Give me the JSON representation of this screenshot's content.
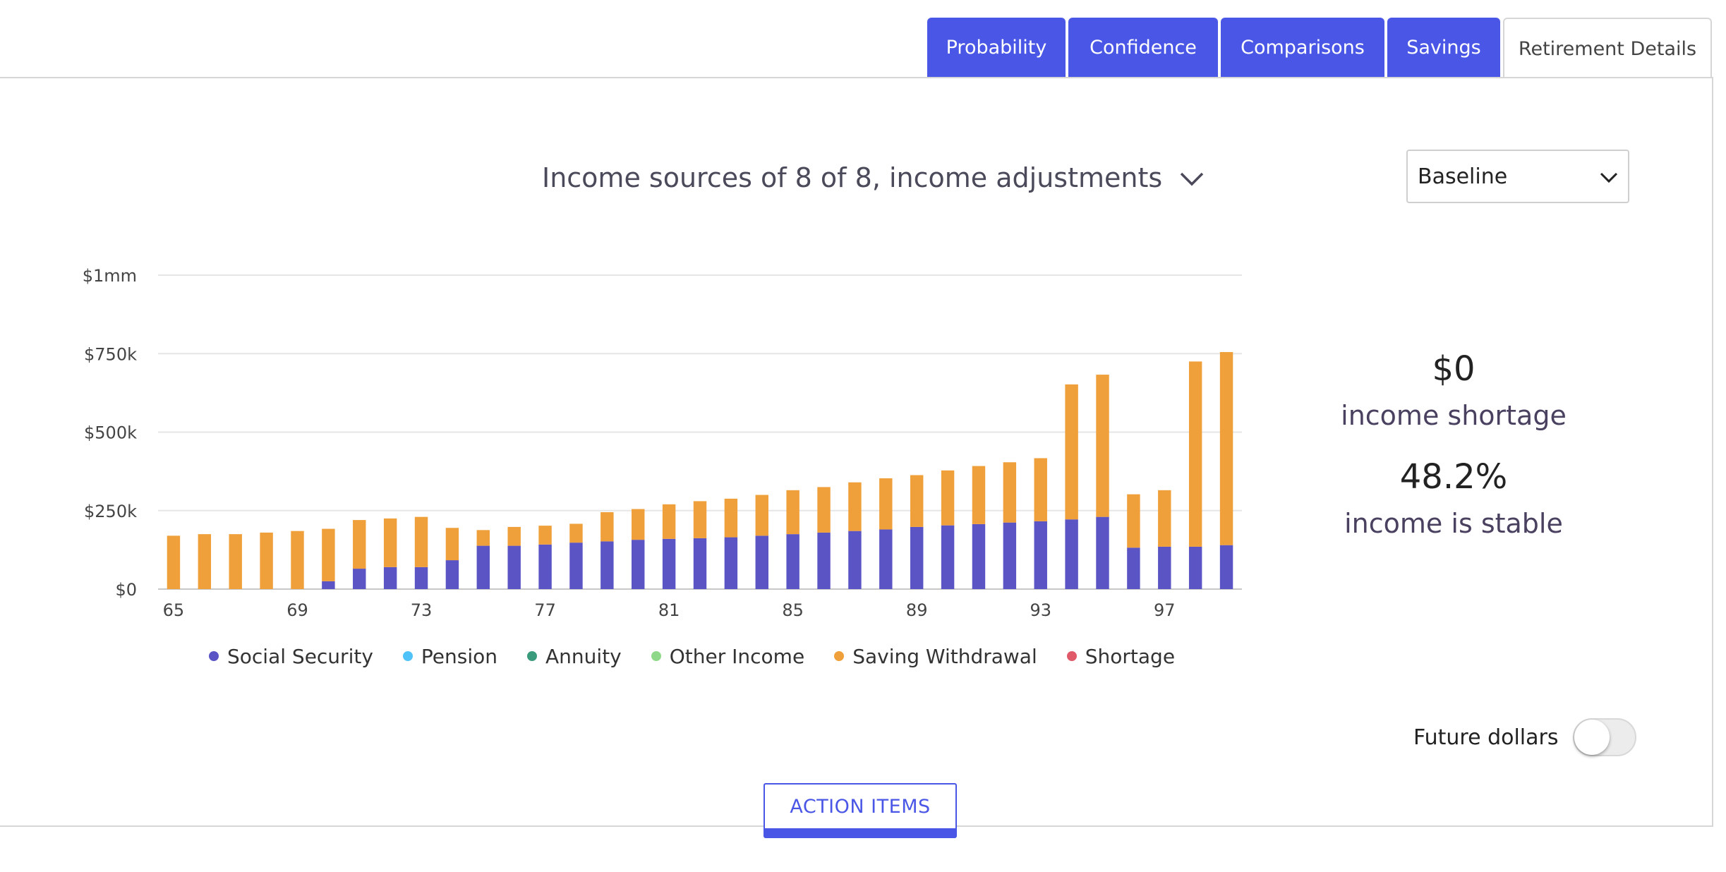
{
  "tabs": [
    {
      "label": "Probability"
    },
    {
      "label": "Confidence"
    },
    {
      "label": "Comparisons"
    },
    {
      "label": "Savings"
    },
    {
      "label": "Retirement Details"
    }
  ],
  "active_tab": "Retirement Details",
  "chart_selector": {
    "label": "Income sources of 8 of 8, income adjustments"
  },
  "scenario_select": {
    "value": "Baseline"
  },
  "stats": {
    "shortage_value": "$0",
    "shortage_label": "income shortage",
    "stable_value": "48.2%",
    "stable_label": "income is stable"
  },
  "toggle": {
    "label": "Future dollars",
    "on": false
  },
  "action_button": {
    "label": "ACTION ITEMS"
  },
  "legend": [
    {
      "name": "Social Security",
      "color": "#5a54c4"
    },
    {
      "name": "Pension",
      "color": "#4fc3f7"
    },
    {
      "name": "Annuity",
      "color": "#3a9b7c"
    },
    {
      "name": "Other Income",
      "color": "#8fd88a"
    },
    {
      "name": "Saving Withdrawal",
      "color": "#f0a03a"
    },
    {
      "name": "Shortage",
      "color": "#e05a6a"
    }
  ],
  "chart_data": {
    "type": "bar",
    "stacked": true,
    "x": [
      65,
      66,
      67,
      68,
      69,
      70,
      71,
      72,
      73,
      74,
      75,
      76,
      77,
      78,
      79,
      80,
      81,
      82,
      83,
      84,
      85,
      86,
      87,
      88,
      89,
      90,
      91,
      92,
      93,
      94,
      95,
      96,
      97,
      98,
      99
    ],
    "x_ticks": [
      "65",
      "69",
      "73",
      "77",
      "81",
      "85",
      "89",
      "93",
      "97"
    ],
    "y_ticks": [
      "$0",
      "$250k",
      "$500k",
      "$750k",
      "$1mm"
    ],
    "ylim": [
      0,
      1000000
    ],
    "grid": true,
    "series": [
      {
        "name": "Social Security",
        "color": "#5a54c4",
        "values": [
          0,
          0,
          0,
          0,
          0,
          25000,
          65000,
          70000,
          70000,
          92000,
          138000,
          138000,
          142000,
          148000,
          152000,
          157000,
          160000,
          162000,
          165000,
          170000,
          175000,
          180000,
          185000,
          190000,
          198000,
          203000,
          207000,
          212000,
          216000,
          222000,
          230000,
          132000,
          135000,
          135000,
          140000
        ]
      },
      {
        "name": "Saving Withdrawal",
        "color": "#f0a03a",
        "values": [
          170000,
          175000,
          175000,
          180000,
          185000,
          167000,
          155000,
          155000,
          160000,
          103000,
          50000,
          60000,
          60000,
          60000,
          93000,
          98000,
          110000,
          118000,
          123000,
          130000,
          140000,
          145000,
          155000,
          163000,
          165000,
          175000,
          185000,
          192000,
          201000,
          430000,
          453000,
          170000,
          180000,
          590000,
          615000
        ]
      }
    ]
  }
}
